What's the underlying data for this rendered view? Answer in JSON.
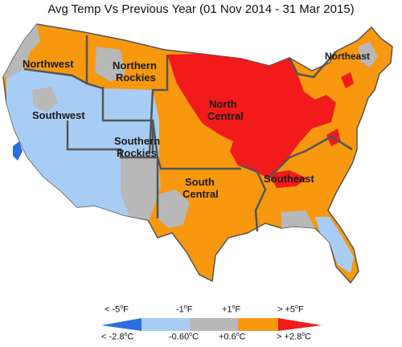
{
  "title": "Avg Temp Vs Previous Year (01 Nov 2014 - 31 Mar 2015)",
  "regions": {
    "northwest": "Northwest",
    "northern_rockies_1": "Northern",
    "northern_rockies_2": "Rockies",
    "southwest": "Southwest",
    "southern_rockies_1": "Southern",
    "southern_rockies_2": "Rockies",
    "north_central_1": "North",
    "north_central_2": "Central",
    "south_central_1": "South",
    "south_central_2": "Central",
    "southeast": "Southeast",
    "northeast": "Northeast"
  },
  "legend": {
    "colors": {
      "much_colder": "#2b6fe0",
      "colder": "#a8cdf5",
      "near_normal": "#b8b8b8",
      "warmer": "#f7980f",
      "much_warmer": "#f21a1a"
    },
    "f_labels": {
      "a": "< -5",
      "b": "-1",
      "c": "+1",
      "d": "> +5",
      "unit": "F",
      "deg": "o"
    },
    "c_labels": {
      "a": "< -2.8",
      "b": "-0.60",
      "c": "+0.6",
      "d": "> +2.8",
      "unit": "C",
      "deg": "o"
    }
  }
}
